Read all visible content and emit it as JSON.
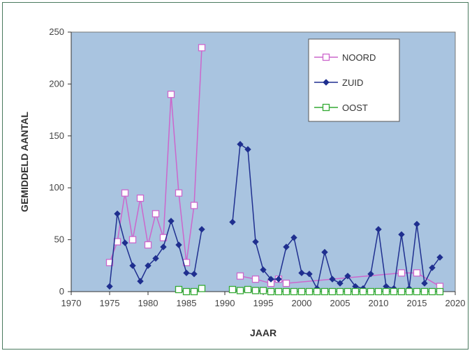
{
  "chart_data": {
    "type": "line",
    "title": "",
    "xlabel": "JAAR",
    "ylabel": "GEMIDDELD AANTAL",
    "xlim": [
      1970,
      2020
    ],
    "ylim": [
      0,
      250
    ],
    "x_ticks": [
      1970,
      1975,
      1980,
      1985,
      1990,
      1995,
      2000,
      2005,
      2010,
      2015,
      2020
    ],
    "y_ticks": [
      0,
      50,
      100,
      150,
      200,
      250
    ],
    "grid": false,
    "legend_position": "top-right",
    "plot_background": "#a9c4e0",
    "series": [
      {
        "name": "NOORD",
        "color": "#cc66cc",
        "marker": "open-square",
        "segments": [
          [
            [
              1975,
              28
            ],
            [
              1976,
              48
            ],
            [
              1977,
              95
            ],
            [
              1978,
              50
            ],
            [
              1979,
              90
            ],
            [
              1980,
              45
            ],
            [
              1981,
              75
            ],
            [
              1982,
              52
            ],
            [
              1983,
              190
            ],
            [
              1984,
              95
            ],
            [
              1985,
              28
            ],
            [
              1986,
              83
            ],
            [
              1987,
              235
            ]
          ],
          [
            [
              1992,
              15
            ],
            [
              1994,
              12
            ],
            [
              1996,
              8
            ],
            [
              1997,
              12
            ],
            [
              1998,
              8
            ],
            [
              2013,
              18
            ],
            [
              2015,
              18
            ],
            [
              2018,
              5
            ]
          ]
        ]
      },
      {
        "name": "ZUID",
        "color": "#1f2f8f",
        "marker": "filled-diamond",
        "segments": [
          [
            [
              1975,
              5
            ],
            [
              1976,
              75
            ],
            [
              1977,
              47
            ],
            [
              1978,
              25
            ],
            [
              1979,
              10
            ],
            [
              1980,
              25
            ],
            [
              1981,
              32
            ],
            [
              1982,
              43
            ],
            [
              1983,
              68
            ],
            [
              1984,
              45
            ],
            [
              1985,
              18
            ],
            [
              1986,
              17
            ],
            [
              1987,
              60
            ]
          ],
          [
            [
              1991,
              67
            ],
            [
              1992,
              142
            ],
            [
              1993,
              137
            ],
            [
              1994,
              48
            ],
            [
              1995,
              21
            ],
            [
              1996,
              12
            ],
            [
              1997,
              12
            ],
            [
              1998,
              43
            ],
            [
              1999,
              52
            ],
            [
              2000,
              18
            ],
            [
              2001,
              17
            ],
            [
              2002,
              3
            ],
            [
              2003,
              38
            ],
            [
              2004,
              12
            ],
            [
              2005,
              8
            ],
            [
              2006,
              15
            ],
            [
              2007,
              5
            ],
            [
              2008,
              3
            ],
            [
              2009,
              17
            ],
            [
              2010,
              60
            ],
            [
              2011,
              5
            ],
            [
              2012,
              3
            ],
            [
              2013,
              55
            ],
            [
              2014,
              3
            ],
            [
              2015,
              65
            ],
            [
              2016,
              8
            ],
            [
              2017,
              23
            ],
            [
              2018,
              33
            ]
          ]
        ]
      },
      {
        "name": "OOST",
        "color": "#33aa33",
        "marker": "open-square",
        "segments": [
          [
            [
              1984,
              2
            ],
            [
              1985,
              0
            ],
            [
              1986,
              0
            ],
            [
              1987,
              3
            ]
          ],
          [
            [
              1991,
              2
            ],
            [
              1992,
              1
            ],
            [
              1993,
              2
            ],
            [
              1994,
              1
            ],
            [
              1995,
              1
            ],
            [
              1996,
              0
            ],
            [
              1997,
              0
            ],
            [
              1998,
              0
            ],
            [
              1999,
              0
            ],
            [
              2000,
              0
            ],
            [
              2001,
              0
            ],
            [
              2002,
              0
            ],
            [
              2003,
              0
            ],
            [
              2004,
              0
            ],
            [
              2005,
              0
            ],
            [
              2006,
              0
            ],
            [
              2007,
              0
            ],
            [
              2008,
              0
            ],
            [
              2009,
              0
            ],
            [
              2010,
              0
            ],
            [
              2011,
              0
            ],
            [
              2012,
              0
            ],
            [
              2013,
              0
            ],
            [
              2014,
              0
            ],
            [
              2015,
              0
            ],
            [
              2016,
              0
            ],
            [
              2017,
              0
            ],
            [
              2018,
              0
            ]
          ]
        ]
      }
    ]
  }
}
